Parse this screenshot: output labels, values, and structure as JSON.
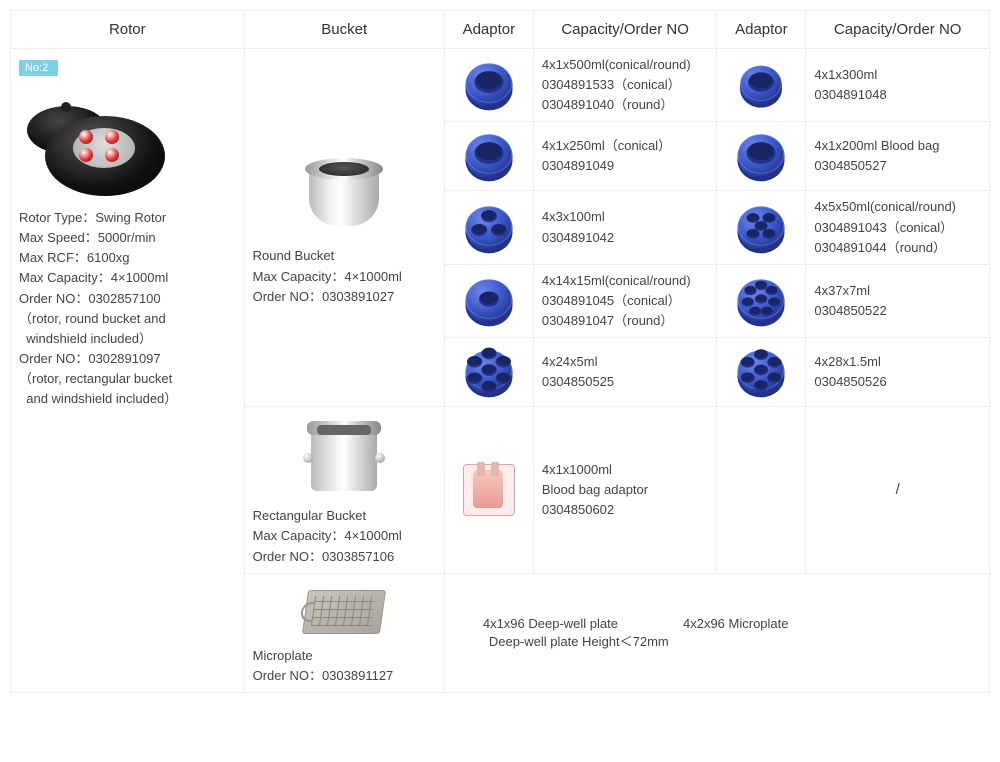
{
  "headers": {
    "rotor": "Rotor",
    "bucket": "Bucket",
    "adaptor": "Adaptor",
    "capacity": "Capacity/Order NO",
    "adaptor2": "Adaptor",
    "capacity2": "Capacity/Order NO"
  },
  "badge": "No:2",
  "rotor_lines": [
    "Rotor Type：Swing Rotor",
    "Max Speed：5000r/min",
    "Max RCF：6100xg",
    "Max Capacity：4×1000ml",
    "Order NO：0302857100",
    "（rotor, round bucket and",
    "  windshield included）",
    "Order NO：0302891097",
    "（rotor, rectangular bucket",
    "  and windshield included）"
  ],
  "round_bucket": {
    "l1": "Round Bucket",
    "l2": "Max Capacity：4×1000ml",
    "l3": "Order NO：0303891027"
  },
  "rect_bucket": {
    "l1": "Rectangular Bucket",
    "l2": "Max Capacity：4×1000ml",
    "l3": "Order NO：0303857106"
  },
  "microplate_bucket": {
    "l1": "Microplate",
    "l2": "Order NO：0303891127"
  },
  "rows": [
    {
      "left": {
        "holes": 1,
        "l1": "4x1x500ml(conical/round)",
        "l2": "0304891533（conical）",
        "l3": "0304891040（round）"
      },
      "right": {
        "holes": 1,
        "l1": "4x1x300ml",
        "l2": "0304891048",
        "l3": ""
      }
    },
    {
      "left": {
        "holes": 1,
        "l1": "4x1x250ml（conical）",
        "l2": "0304891049",
        "l3": ""
      },
      "right": {
        "holes": 1,
        "l1": "4x1x200ml Blood bag",
        "l2": "0304850527",
        "l3": ""
      }
    },
    {
      "left": {
        "holes": 3,
        "l1": "4x3x100ml",
        "l2": "0304891042",
        "l3": ""
      },
      "right": {
        "holes": 5,
        "l1": "4x5x50ml(conical/round)",
        "l2": "0304891043（conical）",
        "l3": "0304891044（round）"
      }
    },
    {
      "left": {
        "holes": 14,
        "l1": "4x14x15ml(conical/round)",
        "l2": "0304891045（conical）",
        "l3": "0304891047（round）"
      },
      "right": {
        "holes": 37,
        "l1": "4x37x7ml",
        "l2": "0304850522",
        "l3": ""
      }
    },
    {
      "left": {
        "holes": 24,
        "l1": "4x24x5ml",
        "l2": "0304850525",
        "l3": ""
      },
      "right": {
        "holes": 28,
        "l1": "4x28x1.5ml",
        "l2": "0304850526",
        "l3": ""
      }
    }
  ],
  "bloodbag_row": {
    "l1": "4x1x1000ml",
    "l2": "Blood bag adaptor",
    "l3": "0304850602",
    "right": "/"
  },
  "microplate_row": {
    "left": "4x1x96 Deep-well plate",
    "left2": "Deep-well plate Height＜72mm",
    "right": "4x2x96 Microplate"
  },
  "style": {
    "adaptor_color": "#3a56c8",
    "adaptor_light": "#6f86e8",
    "adaptor_dark": "#22328a"
  }
}
